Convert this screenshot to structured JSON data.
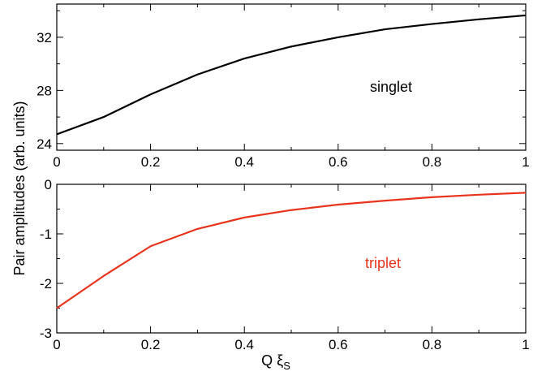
{
  "chart_data": [
    {
      "type": "line",
      "ylabel": "Pair amplitudes (arb. units)",
      "xlim": [
        0,
        1
      ],
      "ylim": [
        23.5,
        34.5
      ],
      "xticks": [
        "0",
        "0.2",
        "0.4",
        "0.6",
        "0.8",
        "1"
      ],
      "yticks": [
        "24",
        "28",
        "32"
      ],
      "grid": false,
      "series": [
        {
          "name": "singlet",
          "color": "#000000",
          "x": [
            0,
            0.1,
            0.2,
            0.3,
            0.4,
            0.5,
            0.6,
            0.7,
            0.8,
            0.9,
            1.0
          ],
          "y": [
            24.7,
            26.0,
            27.7,
            29.2,
            30.4,
            31.3,
            32.0,
            32.6,
            33.0,
            33.35,
            33.65
          ]
        }
      ],
      "annotation": "singlet"
    },
    {
      "type": "line",
      "xlabel_main": "Q ξ",
      "xlabel_sub": "S",
      "xlim": [
        0,
        1
      ],
      "ylim": [
        -3,
        0
      ],
      "xticks": [
        "0",
        "0.2",
        "0.4",
        "0.6",
        "0.8",
        "1"
      ],
      "yticks": [
        "-3",
        "-2",
        "-1",
        "0"
      ],
      "grid": false,
      "series": [
        {
          "name": "triplet",
          "color": "#e8341c",
          "x": [
            0,
            0.1,
            0.2,
            0.3,
            0.4,
            0.5,
            0.6,
            0.7,
            0.8,
            0.9,
            1.0
          ],
          "y": [
            -2.5,
            -1.85,
            -1.25,
            -0.9,
            -0.67,
            -0.52,
            -0.41,
            -0.33,
            -0.26,
            -0.21,
            -0.17
          ]
        }
      ],
      "annotation": "triplet"
    }
  ]
}
